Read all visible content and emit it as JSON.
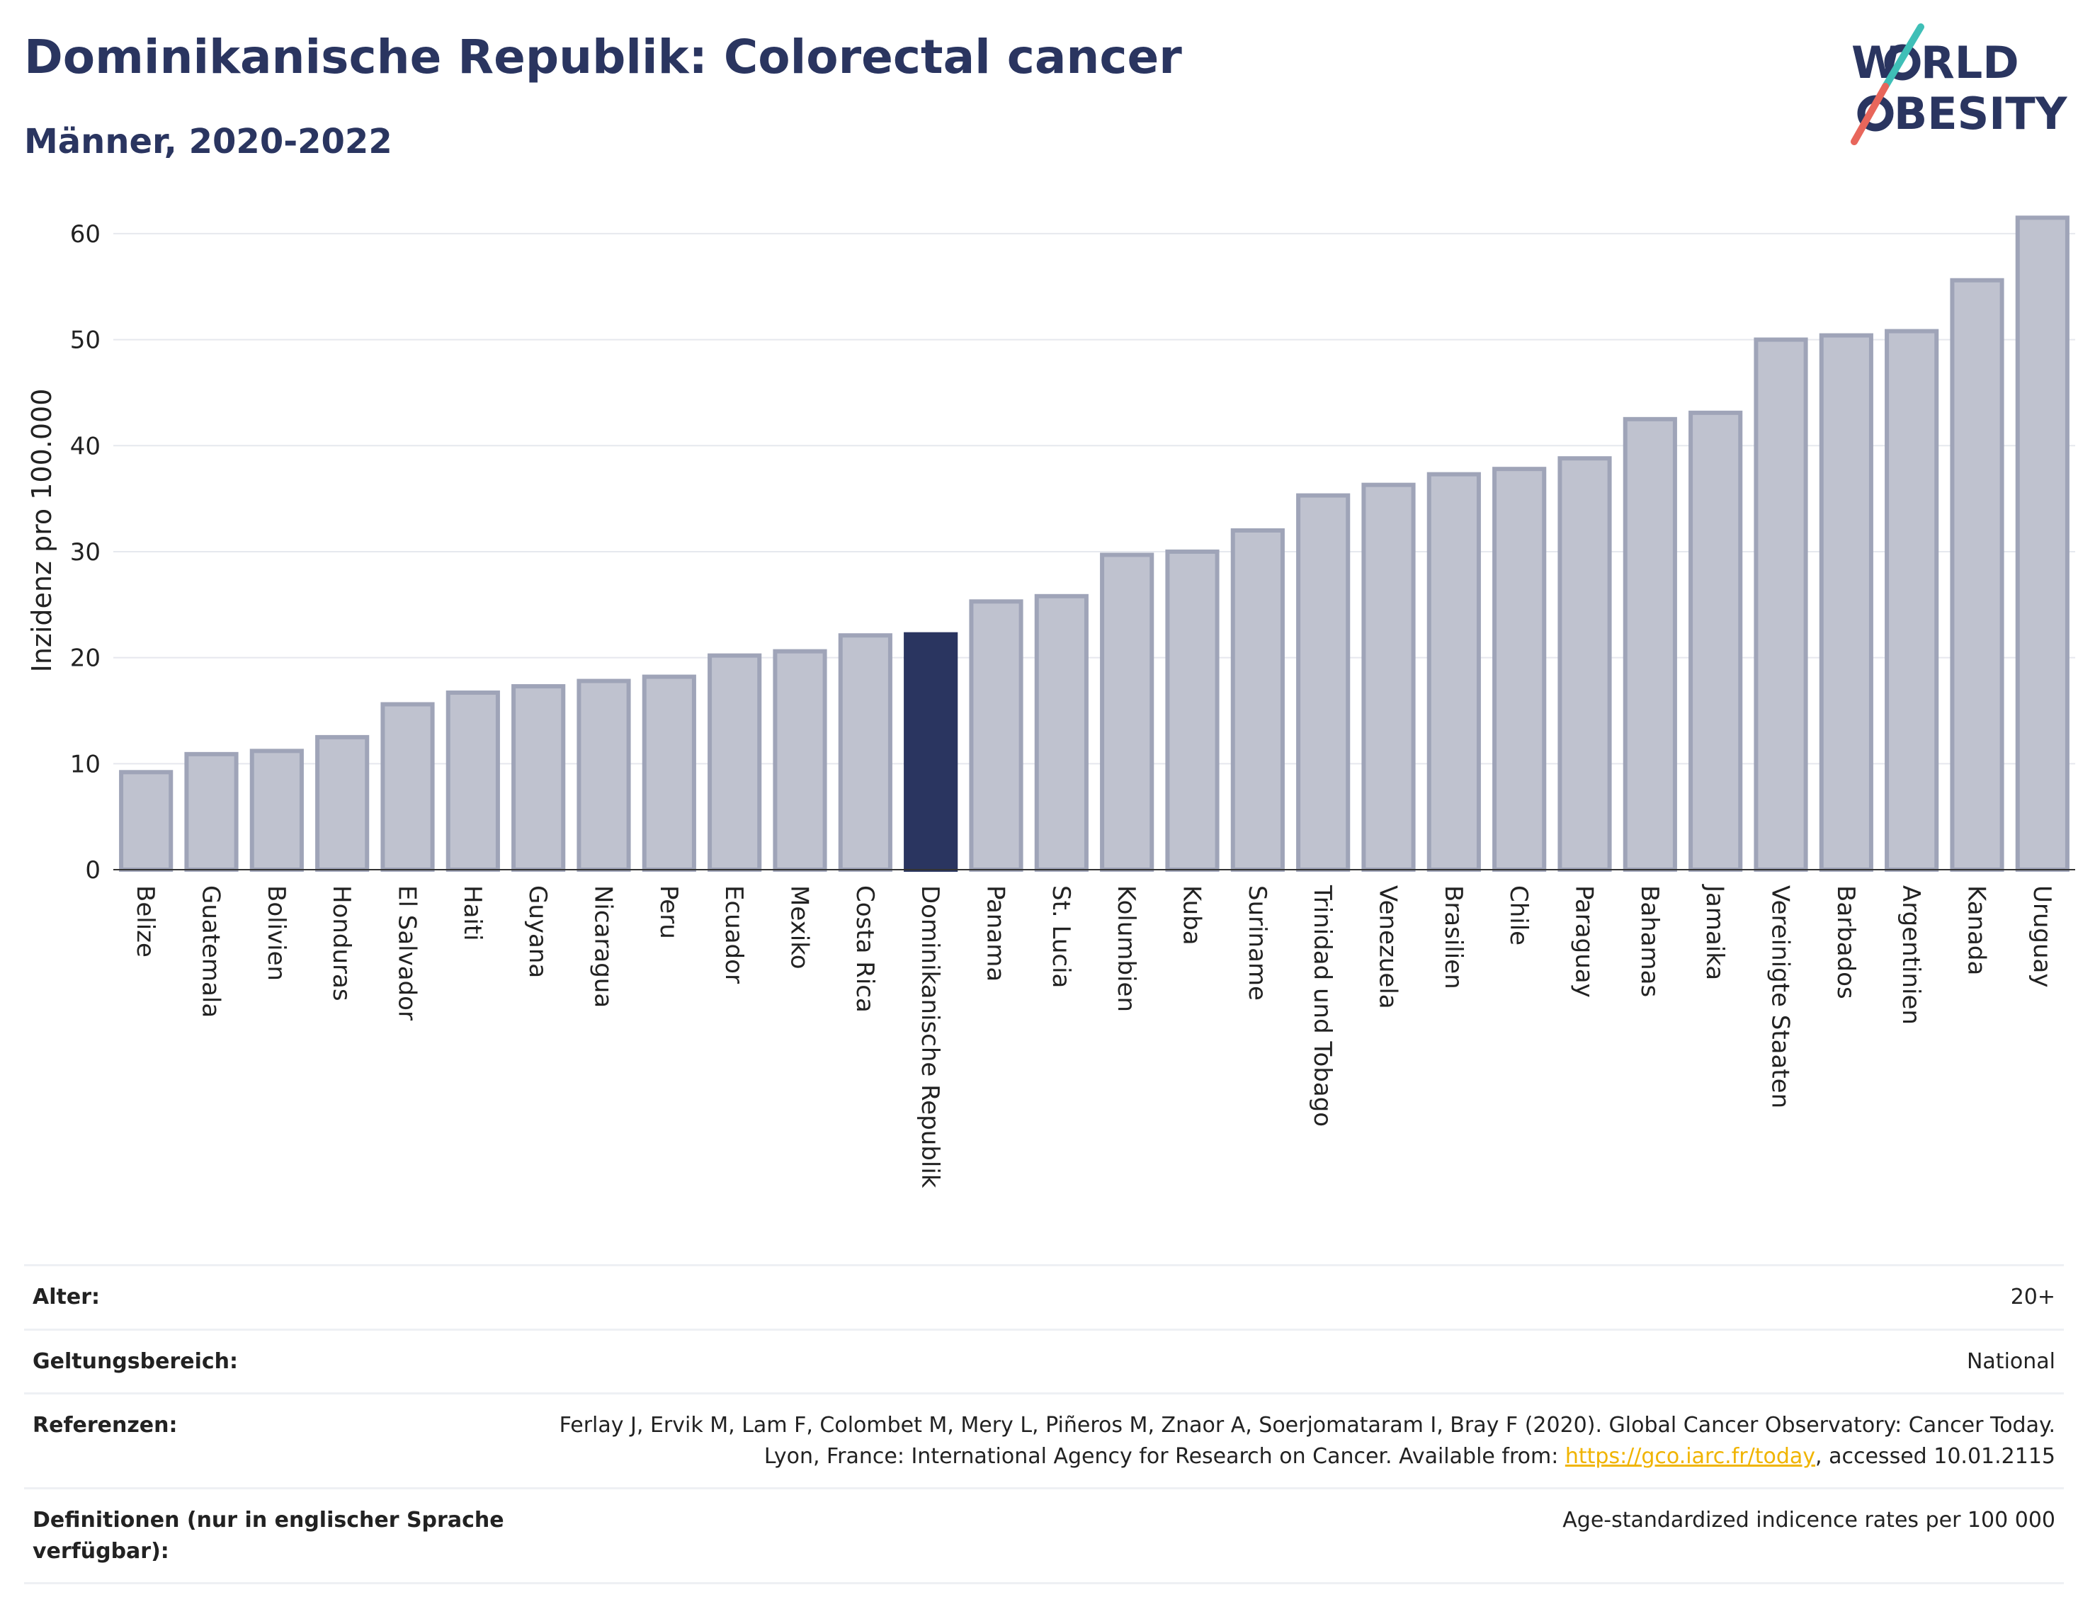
{
  "header": {
    "title": "Dominikanische Republik: Colorectal cancer",
    "subtitle": "Männer, 2020-2022"
  },
  "logo": {
    "line1": "WORLD",
    "line2": "OBESITY",
    "accent_teal": "#3fbfb7",
    "accent_red": "#e8665b"
  },
  "colors": {
    "bar": "#bfc2cf",
    "bar_edge": "#9fa4b8",
    "highlight": "#2a3560",
    "grid": "#e6e8ee"
  },
  "chart_data": {
    "type": "bar",
    "ylabel": "Inzidenz pro 100.000",
    "ylim": [
      0,
      64
    ],
    "yticks": [
      0,
      10,
      20,
      30,
      40,
      50,
      60
    ],
    "grid": true,
    "highlight": "Dominikanische Republik",
    "categories": [
      "Belize",
      "Guatemala",
      "Bolivien",
      "Honduras",
      "El Salvador",
      "Haiti",
      "Guyana",
      "Nicaragua",
      "Peru",
      "Ecuador",
      "Mexiko",
      "Costa Rica",
      "Dominikanische Republik",
      "Panama",
      "St. Lucia",
      "Kolumbien",
      "Kuba",
      "Suriname",
      "Trinidad und Tobago",
      "Venezuela",
      "Brasilien",
      "Chile",
      "Paraguay",
      "Bahamas",
      "Jamaika",
      "Vereinigte Staaten",
      "Barbados",
      "Argentinien",
      "Kanada",
      "Uruguay"
    ],
    "values": [
      9.2,
      10.9,
      11.2,
      12.5,
      15.6,
      16.7,
      17.3,
      17.8,
      18.2,
      20.2,
      20.6,
      22.1,
      22.2,
      25.3,
      25.8,
      29.7,
      30.0,
      32.0,
      35.3,
      36.3,
      37.3,
      37.8,
      38.8,
      42.5,
      43.1,
      50.0,
      50.4,
      50.8,
      55.6,
      61.5
    ]
  },
  "info": {
    "rows": [
      {
        "key": "Alter:",
        "value": "20+"
      },
      {
        "key": "Geltungsbereich:",
        "value": "National"
      },
      {
        "key": "Referenzen:",
        "value": "Ferlay J, Ervik M, Lam F, Colombet M, Mery L, Piñeros M, Znaor A, Soerjomataram I, Bray F (2020). Global Cancer Observatory: Cancer Today. Lyon, France: International Agency for Research on Cancer. Available from: ",
        "link": "https://gco.iarc.fr/today",
        "suffix": ", accessed 10.01.2115"
      },
      {
        "key": "Definitionen (nur in englischer Sprache verfügbar):",
        "value": "Age-standardized indicence rates per 100 000"
      }
    ]
  }
}
